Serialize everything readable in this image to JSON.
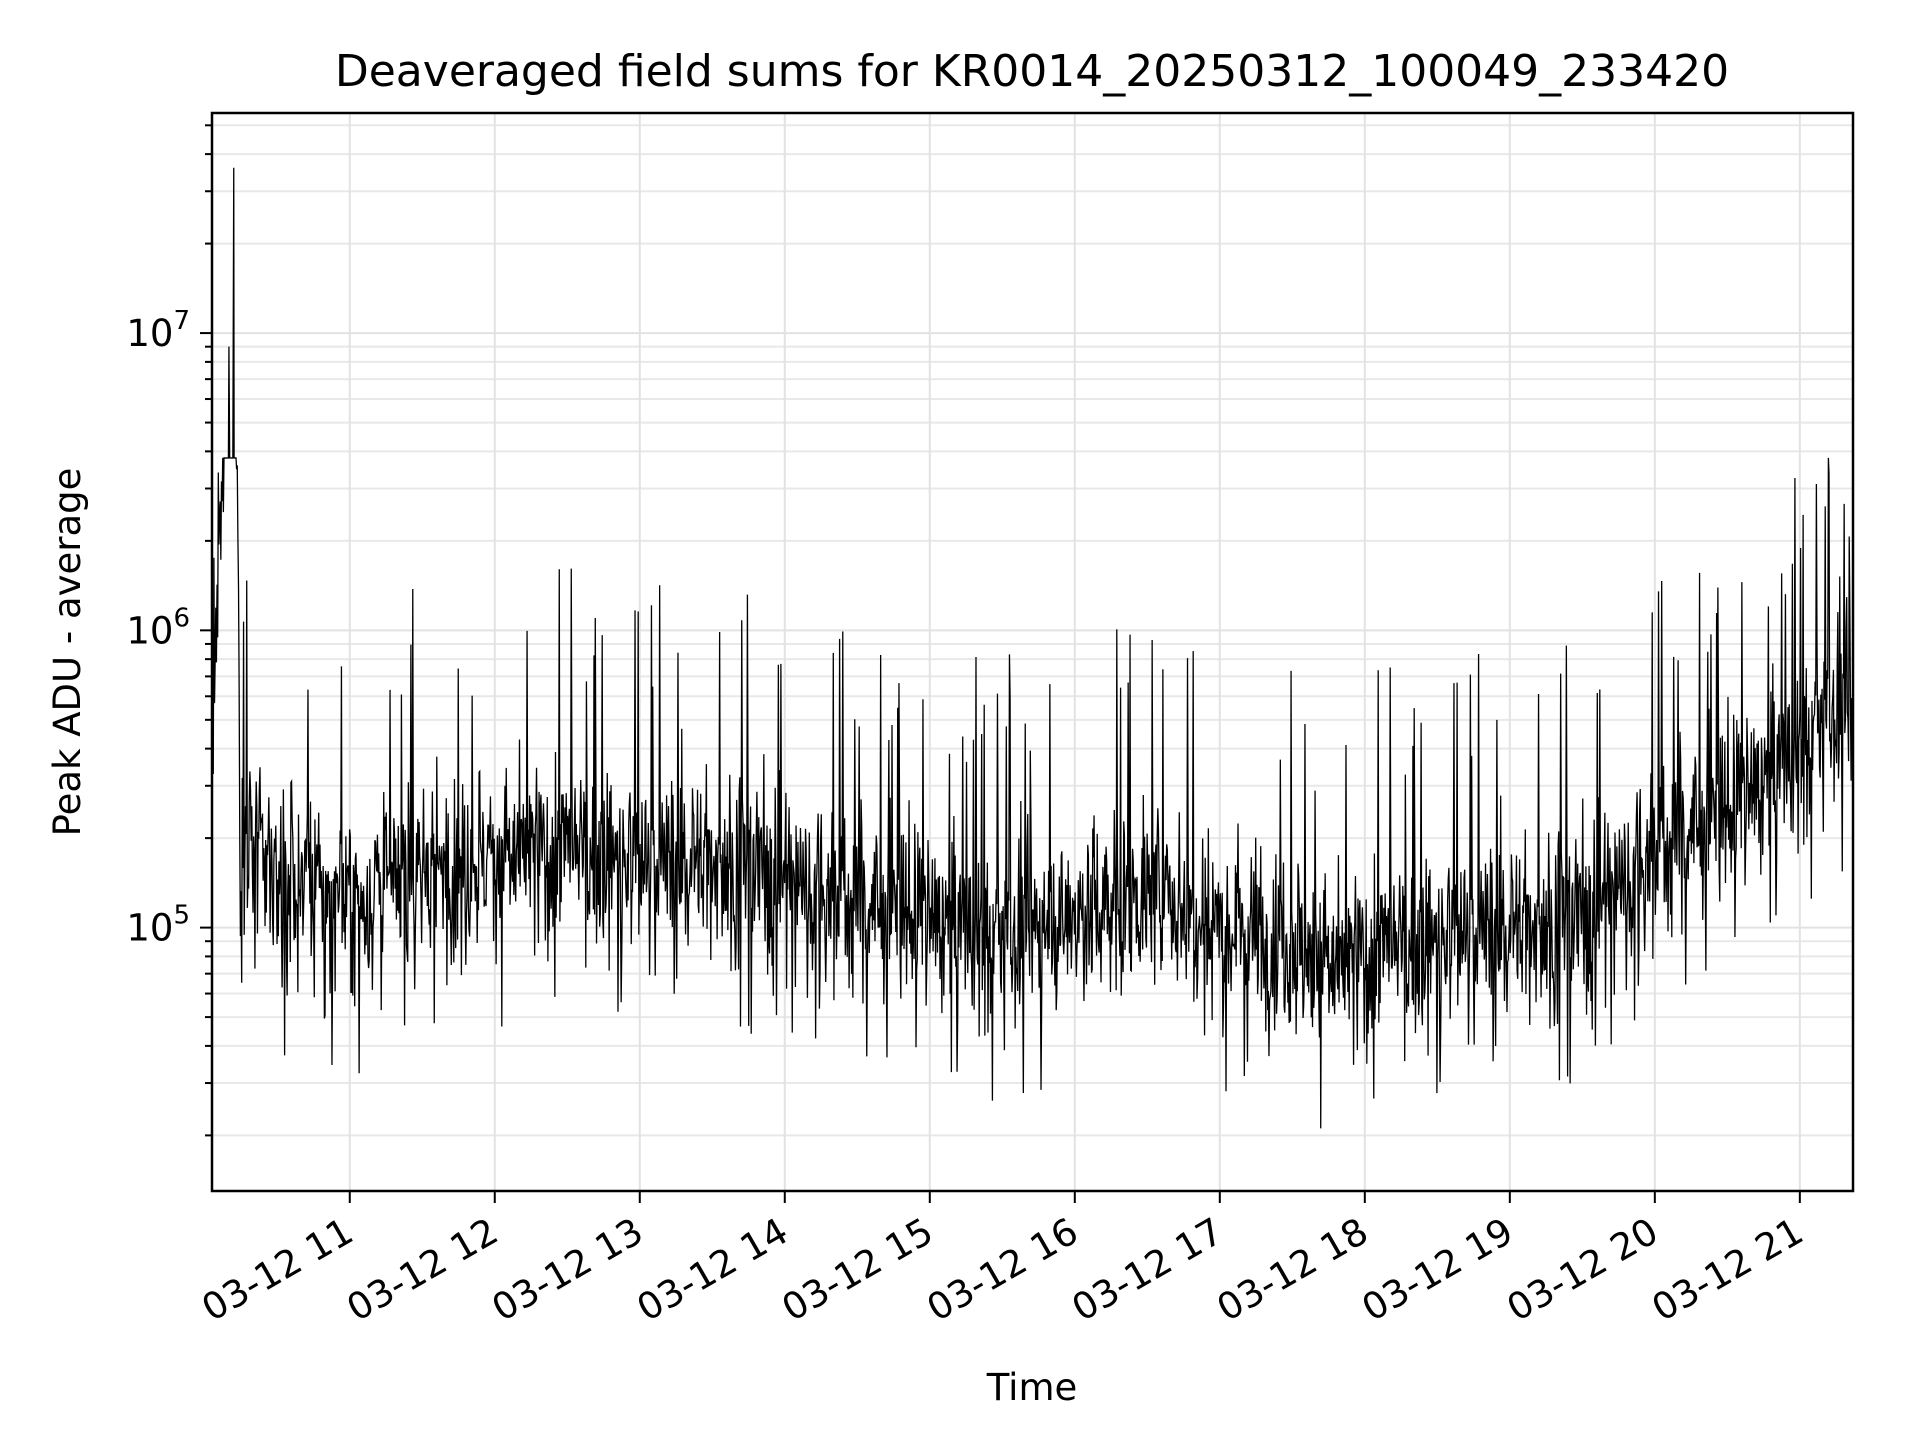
{
  "chart_data": {
    "type": "line",
    "title": "Deaveraged field sums for KR0014_20250312_100049_233420",
    "xlabel": "Time",
    "ylabel": "Peak ADU - average",
    "yscale": "log",
    "xlim": [
      "2025-03-12T10:03",
      "2025-03-12T21:22"
    ],
    "ylim": [
      13000,
      55000000
    ],
    "x_ticks": [
      "03-12 11",
      "03-12 12",
      "03-12 13",
      "03-12 14",
      "03-12 15",
      "03-12 16",
      "03-12 17",
      "03-12 18",
      "03-12 19",
      "03-12 20",
      "03-12 21"
    ],
    "x_tick_times": [
      "2025-03-12T11:00",
      "2025-03-12T12:00",
      "2025-03-12T13:00",
      "2025-03-12T14:00",
      "2025-03-12T15:00",
      "2025-03-12T16:00",
      "2025-03-12T17:00",
      "2025-03-12T18:00",
      "2025-03-12T19:00",
      "2025-03-12T20:00",
      "2025-03-12T21:00"
    ],
    "y_ticks": [
      {
        "value": 100000,
        "base": "10",
        "exp": "5"
      },
      {
        "value": 1000000,
        "base": "10",
        "exp": "6"
      },
      {
        "value": 10000000,
        "base": "10",
        "exp": "7"
      }
    ],
    "grid": "major and minor",
    "series": [
      {
        "color": "#000000",
        "x": [
          "2025-03-12T10:03",
          "2025-03-12T10:10",
          "2025-03-12T10:12",
          "2025-03-12T10:15",
          "2025-03-12T10:30",
          "2025-03-12T11:00",
          "2025-03-12T11:20",
          "2025-03-12T11:35",
          "2025-03-12T12:00",
          "2025-03-12T12:30",
          "2025-03-12T12:50",
          "2025-03-12T13:00",
          "2025-03-12T13:30",
          "2025-03-12T14:00",
          "2025-03-12T14:30",
          "2025-03-12T15:00",
          "2025-03-12T15:30",
          "2025-03-12T16:00",
          "2025-03-12T16:30",
          "2025-03-12T17:00",
          "2025-03-12T17:30",
          "2025-03-12T17:50",
          "2025-03-12T18:00",
          "2025-03-12T18:30",
          "2025-03-12T19:00",
          "2025-03-12T19:30",
          "2025-03-12T20:00",
          "2025-03-12T20:30",
          "2025-03-12T21:00",
          "2025-03-12T21:15",
          "2025-03-12T21:22"
        ],
        "y": [
          450000,
          9000000,
          36000000,
          200000,
          150000,
          120000,
          140000,
          160000,
          170000,
          180000,
          170000,
          160000,
          170000,
          150000,
          120000,
          110000,
          90000,
          110000,
          130000,
          110000,
          90000,
          70000,
          80000,
          90000,
          100000,
          110000,
          180000,
          250000,
          400000,
          550000,
          500000
        ]
      }
    ]
  }
}
